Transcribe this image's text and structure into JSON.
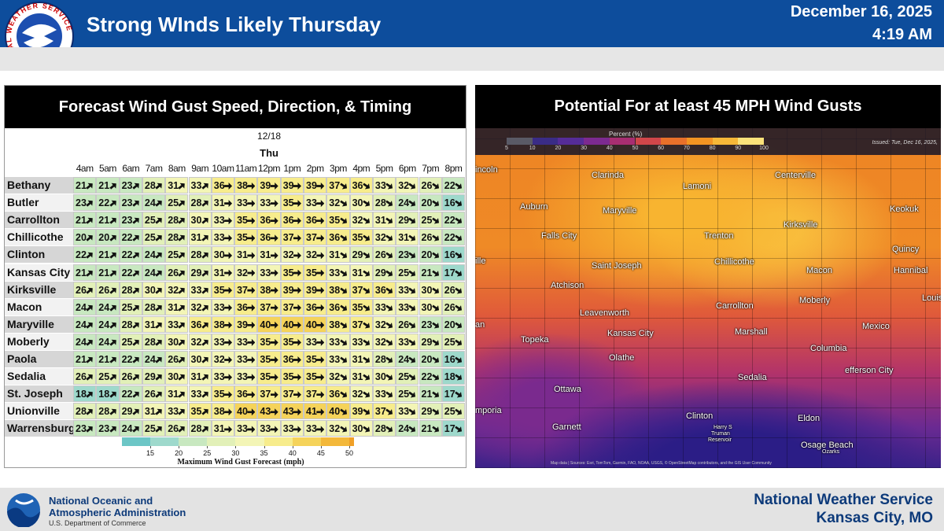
{
  "header": {
    "logo_text": "NATIONAL WEATHER SERVICE",
    "title": "Strong WInds Likely Thursday",
    "date": "December 16, 2025",
    "time": "4:19 AM"
  },
  "left_panel": {
    "title": "Forecast Wind Gust Speed, Direction, & Timing",
    "table": {
      "date": "12/18",
      "day": "Thu",
      "hours": [
        "4am",
        "5am",
        "6am",
        "7am",
        "8am",
        "9am",
        "10am",
        "11am",
        "12pm",
        "1pm",
        "2pm",
        "3pm",
        "4pm",
        "5pm",
        "6pm",
        "7pm",
        "8pm"
      ],
      "rows": [
        {
          "name": "Bethany",
          "values": [
            21,
            21,
            23,
            28,
            31,
            33,
            36,
            38,
            39,
            39,
            39,
            37,
            36,
            33,
            32,
            26,
            22
          ]
        },
        {
          "name": "Butler",
          "values": [
            23,
            22,
            23,
            24,
            25,
            28,
            31,
            33,
            33,
            35,
            33,
            32,
            30,
            28,
            24,
            20,
            16
          ]
        },
        {
          "name": "Carrollton",
          "values": [
            21,
            21,
            23,
            25,
            28,
            30,
            33,
            35,
            36,
            36,
            36,
            35,
            32,
            31,
            29,
            25,
            22
          ]
        },
        {
          "name": "Chillicothe",
          "values": [
            20,
            20,
            22,
            25,
            28,
            31,
            33,
            35,
            36,
            37,
            37,
            36,
            35,
            32,
            31,
            26,
            22
          ]
        },
        {
          "name": "Clinton",
          "values": [
            22,
            21,
            22,
            24,
            25,
            28,
            30,
            31,
            31,
            32,
            32,
            31,
            29,
            26,
            23,
            20,
            16
          ]
        },
        {
          "name": "Kansas City",
          "values": [
            21,
            21,
            22,
            24,
            26,
            29,
            31,
            32,
            33,
            35,
            35,
            33,
            31,
            29,
            25,
            21,
            17
          ]
        },
        {
          "name": "Kirksville",
          "values": [
            26,
            26,
            28,
            30,
            32,
            33,
            35,
            37,
            38,
            39,
            39,
            38,
            37,
            36,
            33,
            30,
            26
          ]
        },
        {
          "name": "Macon",
          "values": [
            24,
            24,
            25,
            28,
            31,
            32,
            33,
            36,
            37,
            37,
            36,
            36,
            35,
            33,
            33,
            30,
            26
          ]
        },
        {
          "name": "Maryville",
          "values": [
            24,
            24,
            28,
            31,
            33,
            36,
            38,
            39,
            40,
            40,
            40,
            38,
            37,
            32,
            26,
            23,
            20
          ]
        },
        {
          "name": "Moberly",
          "values": [
            24,
            24,
            25,
            28,
            30,
            32,
            33,
            33,
            35,
            35,
            33,
            33,
            33,
            32,
            33,
            29,
            25
          ]
        },
        {
          "name": "Paola",
          "values": [
            21,
            21,
            22,
            24,
            26,
            30,
            32,
            33,
            35,
            36,
            35,
            33,
            31,
            28,
            24,
            20,
            16
          ]
        },
        {
          "name": "Sedalia",
          "values": [
            26,
            25,
            26,
            29,
            30,
            31,
            33,
            33,
            35,
            35,
            35,
            32,
            31,
            30,
            25,
            22,
            18
          ]
        },
        {
          "name": "St. Joseph",
          "values": [
            18,
            18,
            22,
            26,
            31,
            33,
            35,
            36,
            37,
            37,
            37,
            36,
            32,
            33,
            25,
            21,
            17
          ]
        },
        {
          "name": "Unionville",
          "values": [
            28,
            28,
            29,
            31,
            33,
            35,
            38,
            40,
            43,
            43,
            41,
            40,
            39,
            37,
            33,
            29,
            25
          ]
        },
        {
          "name": "Warrensburg",
          "values": [
            23,
            23,
            24,
            25,
            26,
            28,
            31,
            33,
            33,
            33,
            33,
            32,
            30,
            28,
            24,
            21,
            17
          ]
        }
      ]
    },
    "colorbar": {
      "label": "Maximum Wind Gust Forecast (mph)",
      "ticks": [
        15,
        20,
        25,
        30,
        35,
        40,
        45,
        50
      ],
      "colors": [
        "#6cc6c6",
        "#9ed9cc",
        "#c8e8c0",
        "#e2f0b8",
        "#f3f5b6",
        "#f7ec8c",
        "#f5d35a",
        "#f3b83a",
        "#f0a028"
      ]
    }
  },
  "right_panel": {
    "title": "Potential For at least 45 MPH Wind Gusts",
    "legend": {
      "title": "Percent (%)",
      "ticks": [
        5,
        10,
        20,
        30,
        40,
        50,
        60,
        70,
        80,
        90,
        100
      ],
      "colors": [
        "#5a5a66",
        "#3a2c86",
        "#552c98",
        "#7c2a90",
        "#a82e72",
        "#d0464a",
        "#e8702a",
        "#f39422",
        "#f7b838",
        "#fbe27a"
      ]
    },
    "issued": "Issued: Tue, Dec 16, 2025,",
    "labels": [
      "incoln",
      "Clarinda",
      "Lamoni",
      "Centerville",
      "Auburn",
      "Maryville",
      "Keokuk",
      "Falls City",
      "Trenton",
      "Kirksville",
      "Quincy",
      "ille",
      "Saint Joseph",
      "Chillicothe",
      "Macon",
      "Hannibal",
      "Atchison",
      "Louis",
      "Carrollton",
      "Moberly",
      "Leavenworth",
      "an",
      "Mexico",
      "Topeka",
      "Kansas City",
      "Marshall",
      "Columbia",
      "Olathe",
      "Sedalia",
      "Ottawa",
      "efferson City",
      "mporia",
      "Clinton",
      "Eldon",
      "Garnett",
      "Harry S",
      "Truman",
      "Reservoir",
      "Osage Beach",
      "Ozarks"
    ],
    "attribution": "Map data | Sources: Esri, TomTom, Garmin, FAO, NOAA, USGS, © OpenStreetMap contributors, and the GIS User Community"
  },
  "footer": {
    "agency": [
      "National Oceanic and",
      "Atmospheric Administration"
    ],
    "department": "U.S. Department of Commerce",
    "office": [
      "National Weather Service",
      "Kansas City, MO"
    ]
  }
}
